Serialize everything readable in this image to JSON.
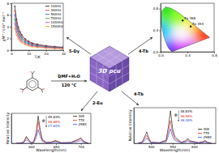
{
  "scheme": {
    "solvent": "DMF+H₂O",
    "temperature": "120 °C",
    "framework": "3D pcu",
    "products": [
      "5-Dy",
      "4-Tb",
      "2-Eu",
      "4-Tb"
    ]
  },
  "chart_data": [
    {
      "type": "line",
      "marker": "circle",
      "x_label": "T/K",
      "y_label": "χM'' / cm³ mol⁻¹",
      "x": [
        2,
        3,
        4,
        5,
        6,
        8,
        10,
        12,
        15,
        20,
        25,
        30
      ],
      "series": [
        {
          "name": "100Hz",
          "color": "#000000",
          "values": [
            7.5,
            5.2,
            3.9,
            3.1,
            2.6,
            1.9,
            1.5,
            1.2,
            1.0,
            0.75,
            0.6,
            0.5
          ]
        },
        {
          "name": "300Hz",
          "color": "#e02020",
          "values": [
            6.75,
            4.68,
            3.51,
            2.79,
            2.34,
            1.71,
            1.35,
            1.08,
            0.9,
            0.675,
            0.54,
            0.45
          ]
        },
        {
          "name": "500Hz",
          "color": "#2040e0",
          "values": [
            6,
            4.16,
            3.12,
            2.48,
            2.08,
            1.52,
            1.2,
            0.96,
            0.8,
            0.6,
            0.48,
            0.4
          ]
        },
        {
          "name": "700Hz",
          "color": "#10a010",
          "values": [
            5.25,
            3.64,
            2.73,
            2.17,
            1.82,
            1.33,
            1.05,
            0.84,
            0.7,
            0.525,
            0.42,
            0.35
          ]
        },
        {
          "name": "1000Hz",
          "color": "#d020d0",
          "values": [
            4.5,
            3.12,
            2.34,
            1.86,
            1.56,
            1.14,
            0.9,
            0.72,
            0.6,
            0.45,
            0.36,
            0.3
          ]
        },
        {
          "name": "1500Hz",
          "color": "#f08000",
          "values": [
            3.75,
            2.6,
            1.95,
            1.55,
            1.3,
            0.95,
            0.75,
            0.6,
            0.5,
            0.375,
            0.3,
            0.25
          ]
        }
      ],
      "xlim": [
        0,
        30
      ],
      "ylim": [
        0,
        8
      ],
      "xticks": [
        0,
        10,
        20,
        30
      ],
      "yticks": [
        0,
        2,
        4,
        6,
        8
      ],
      "legend": "upper right"
    },
    {
      "type": "scatter",
      "marker": "square",
      "x": [
        0.33,
        0.45
      ],
      "values": [
        0.58,
        0.47
      ],
      "point_labels": [
        "Ex 368",
        "Ex 394"
      ],
      "colors": [
        "#000000",
        "#000000"
      ],
      "xlim": [
        0,
        0.8
      ],
      "ylim": [
        0,
        0.9
      ],
      "xticks": [
        {
          "value": 0,
          "label": "0.0"
        },
        {
          "value": 0.4,
          "label": "0.4"
        },
        {
          "value": 0.8,
          "label": "0.8"
        }
      ],
      "yticks": [
        {
          "value": 0,
          "label": "0.0"
        },
        {
          "value": 0.4,
          "label": "0.4"
        },
        {
          "value": 0.8,
          "label": "0.8"
        }
      ]
    },
    {
      "type": "line",
      "x_label": "Wavelength(nm)",
      "y_label": "Relative Intensity",
      "x": [
        570,
        575,
        580,
        585,
        590,
        595,
        600,
        605,
        610,
        614,
        618,
        622,
        630,
        640,
        648,
        652,
        660,
        680,
        695,
        700,
        705,
        715
      ],
      "series": [
        {
          "name": "30K",
          "color": "#000000",
          "values": [
            0,
            0,
            2,
            5,
            25,
            12,
            3,
            5,
            40,
            100,
            50,
            15,
            3,
            4,
            10,
            8,
            2,
            3,
            15,
            20,
            8,
            0
          ]
        },
        {
          "name": "77K",
          "color": "#e02020",
          "values": [
            0,
            0,
            1.6,
            4,
            20,
            9.6,
            2.4,
            4,
            32,
            80,
            40,
            12,
            2.4,
            3.2,
            8,
            6.4,
            1.6,
            2.4,
            12,
            16,
            6.4,
            0
          ]
        },
        {
          "name": "298K",
          "color": "#2040e0",
          "values": [
            0,
            0,
            1,
            2.5,
            12.5,
            6,
            1.5,
            2.5,
            20,
            50,
            25,
            7.5,
            1.5,
            2,
            5,
            4,
            1,
            1.5,
            7.5,
            10,
            4,
            0
          ]
        }
      ],
      "xlim": [
        560,
        720
      ],
      "ylim": [
        0,
        110
      ],
      "xticks": [
        600,
        650,
        700
      ],
      "tick_labels": "x",
      "legend": "upper right",
      "yield_symbol": "Φ",
      "quantum_yields": [
        "49.63%",
        "48.88%",
        "17.62%"
      ]
    },
    {
      "type": "line",
      "x_label": "Wavelength(nm)",
      "y_label": "Relative Intensity",
      "x": [
        470,
        480,
        485,
        490,
        495,
        500,
        520,
        535,
        540,
        545,
        550,
        555,
        570,
        580,
        585,
        590,
        610,
        620,
        625,
        630,
        640
      ],
      "series": [
        {
          "name": "30K",
          "color": "#000000",
          "values": [
            0,
            5,
            20,
            35,
            15,
            3,
            2,
            10,
            50,
            100,
            45,
            20,
            3,
            8,
            15,
            8,
            2,
            5,
            9,
            4,
            0
          ]
        },
        {
          "name": "77K",
          "color": "#e02020",
          "values": [
            0,
            3.5,
            14,
            24.5,
            10.5,
            2.1,
            1.4,
            7,
            35,
            70,
            31.5,
            14,
            2.1,
            5.6,
            10.5,
            5.6,
            1.4,
            3.5,
            6.3,
            2.8,
            0
          ]
        },
        {
          "name": "298K",
          "color": "#2040e0",
          "values": [
            0,
            2.25,
            9,
            15.75,
            6.75,
            1.35,
            0.9,
            4.5,
            22.5,
            45,
            20.25,
            9,
            1.35,
            3.6,
            6.75,
            3.6,
            0.9,
            2.25,
            4.05,
            1.8,
            0
          ]
        }
      ],
      "xlim": [
        460,
        650
      ],
      "ylim": [
        0,
        110
      ],
      "xticks": [
        500,
        550,
        600
      ],
      "tick_labels": "x",
      "legend": "lower right",
      "yield_symbol": "Φ",
      "quantum_yields": [
        "48.83%",
        "46.96%",
        "36.30%"
      ]
    }
  ]
}
